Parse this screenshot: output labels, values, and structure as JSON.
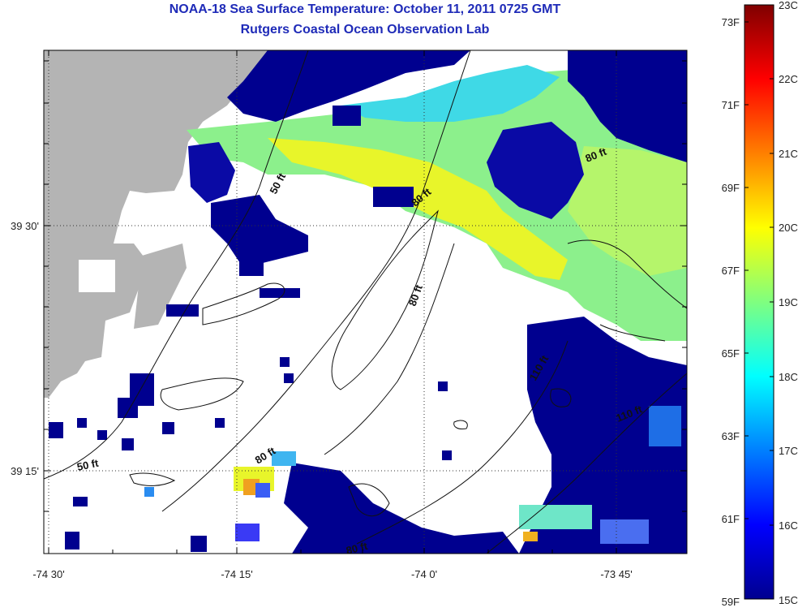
{
  "title": "NOAA-18 Sea Surface Temperature:  October 11, 2011 0725 GMT",
  "subtitle": "Rutgers Coastal Ocean Observation Lab",
  "x_ticks": [
    "-74 30'",
    "-74 15'",
    "-74 0'",
    "-73 45'"
  ],
  "y_ticks": [
    "39 30'",
    "39 15'"
  ],
  "contour_labels": [
    "50 ft",
    "80 ft",
    "80 ft",
    "80 ft",
    "80 ft",
    "110 ft",
    "110 ft",
    "50 ft",
    "80 ft"
  ],
  "colorbar": {
    "fahrenheit": [
      "73F",
      "71F",
      "69F",
      "67F",
      "65F",
      "63F",
      "61F",
      "59F"
    ],
    "celsius": [
      "23C",
      "22C",
      "21C",
      "20C",
      "19C",
      "18C",
      "17C",
      "16C",
      "15C"
    ]
  },
  "colors": {
    "land": "#b4b4b4",
    "title": "#1f2bb8",
    "cold": "#00008f",
    "warm": "#800000"
  }
}
